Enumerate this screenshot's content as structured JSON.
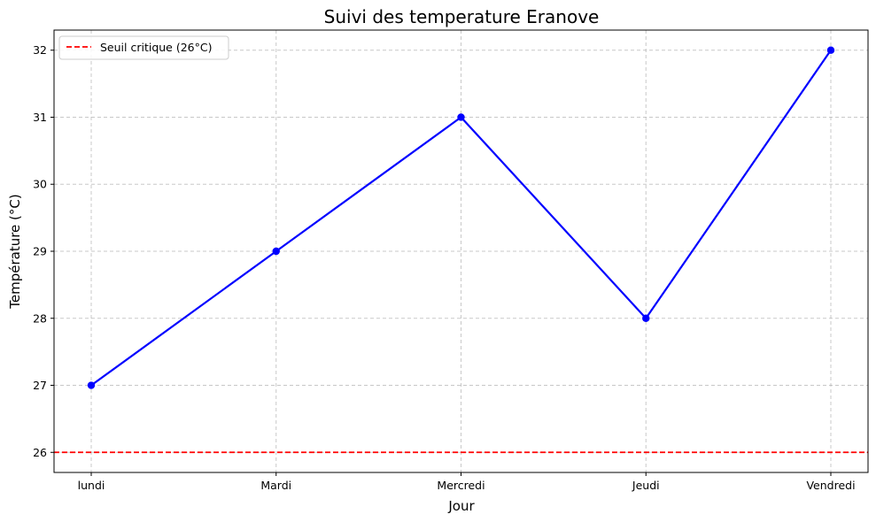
{
  "chart_data": {
    "type": "line",
    "title": "Suivi des temperature Eranove",
    "xlabel": "Jour",
    "ylabel": "Température (°C)",
    "categories": [
      "lundi",
      "Mardi",
      "Mercredi",
      "Jeudi",
      "Vendredi"
    ],
    "series": [
      {
        "values": [
          27,
          29,
          31,
          28,
          32
        ],
        "color": "#0000ff",
        "marker": "circle"
      }
    ],
    "threshold": {
      "label": "Seuil critique (26°C)",
      "value": 26,
      "color": "#ff0000",
      "style": "dashed"
    },
    "ylim": [
      25.7,
      32.3
    ],
    "yticks": [
      26,
      27,
      28,
      29,
      30,
      31,
      32
    ],
    "grid": true,
    "legend_position": "top-left"
  }
}
